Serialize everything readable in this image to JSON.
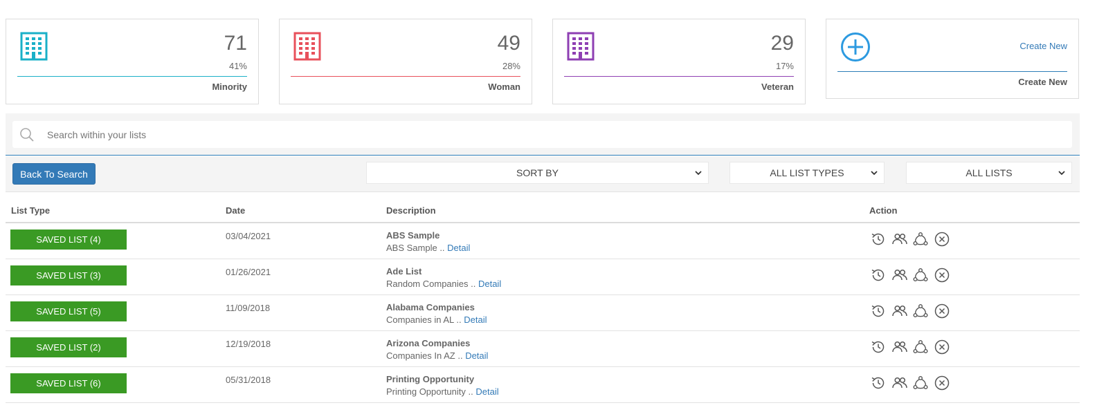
{
  "cards": [
    {
      "count": "71",
      "percent": "41%",
      "label": "Minority",
      "color": "#1ab0c8",
      "icon": "building-icon"
    },
    {
      "count": "49",
      "percent": "28%",
      "label": "Woman",
      "color": "#e8505b",
      "icon": "building-icon"
    },
    {
      "count": "29",
      "percent": "17%",
      "label": "Veteran",
      "color": "#8e3fb3",
      "icon": "building-icon"
    }
  ],
  "create_card": {
    "link": "Create New",
    "label": "Create New",
    "icon": "plus-circle-icon",
    "color": "#2d9ae0"
  },
  "search": {
    "placeholder": "Search within your lists",
    "icon": "search-icon"
  },
  "toolbar": {
    "back_label": "Back To Search",
    "sort_by": "SORT BY",
    "list_types": "ALL LIST TYPES",
    "lists": "ALL LISTS"
  },
  "table": {
    "headers": {
      "list_type": "List Type",
      "date": "Date",
      "description": "Description",
      "action": "Action"
    },
    "detail_label": "Detail",
    "rows": [
      {
        "badge": "SAVED LIST (4)",
        "date": "03/04/2021",
        "title": "ABS Sample",
        "subtitle": "ABS Sample .."
      },
      {
        "badge": "SAVED LIST (3)",
        "date": "01/26/2021",
        "title": "Ade List",
        "subtitle": "Random Companies .."
      },
      {
        "badge": "SAVED LIST (5)",
        "date": "11/09/2018",
        "title": "Alabama Companies",
        "subtitle": "Companies in AL .."
      },
      {
        "badge": "SAVED LIST (2)",
        "date": "12/19/2018",
        "title": "Arizona Companies",
        "subtitle": "Companies In AZ .."
      },
      {
        "badge": "SAVED LIST (6)",
        "date": "05/31/2018",
        "title": "Printing Opportunity",
        "subtitle": "Printing Opportunity .."
      }
    ],
    "action_icons": [
      "history-icon",
      "users-icon",
      "share-icon",
      "close-circle-icon"
    ]
  },
  "colors": {
    "badge": "#3a9a24",
    "accent": "#337ab7"
  }
}
